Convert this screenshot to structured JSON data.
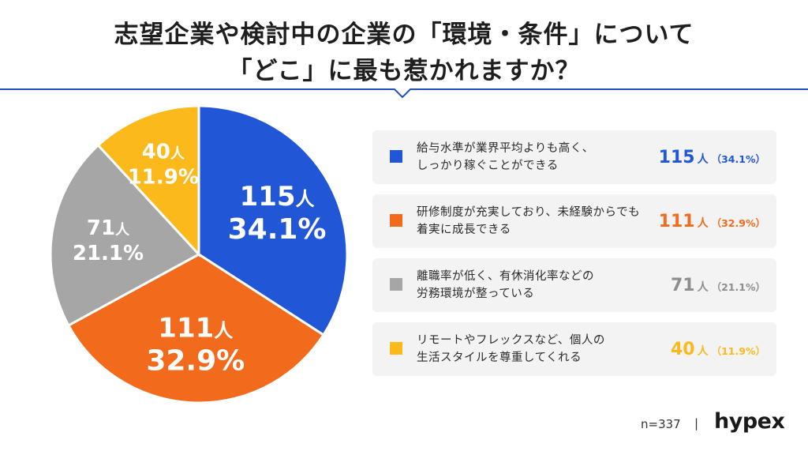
{
  "title": {
    "line1": "志望企業や検討中の企業の「環境・条件」について",
    "line2": "「どこ」に最も惹かれますか？"
  },
  "colors": {
    "blue": "#2156d6",
    "orange": "#f26a1b",
    "gray": "#a6a6a6",
    "yellow": "#fbb91c",
    "rule": "#1f4fbf"
  },
  "chart_data": {
    "type": "pie",
    "unit": "人",
    "slices": [
      {
        "label_line1": "給与水準が業界平均よりも高く、",
        "label_line2": "しっかり稼ぐことができる",
        "value": 115,
        "percent": "34.1%",
        "color": "blue"
      },
      {
        "label_line1": "研修制度が充実しており、未経験からでも",
        "label_line2": "着実に成長できる",
        "value": 111,
        "percent": "32.9%",
        "color": "orange"
      },
      {
        "label_line1": "離職率が低く、有休消化率などの",
        "label_line2": "労務環境が整っている",
        "value": 71,
        "percent": "21.1%",
        "color": "gray"
      },
      {
        "label_line1": "リモートやフレックスなど、個人の",
        "label_line2": "生活スタイルを尊重してくれる",
        "value": 40,
        "percent": "11.9%",
        "color": "yellow"
      }
    ]
  },
  "footer": {
    "n": "n=337",
    "sep": "|",
    "brand": "hypex"
  }
}
